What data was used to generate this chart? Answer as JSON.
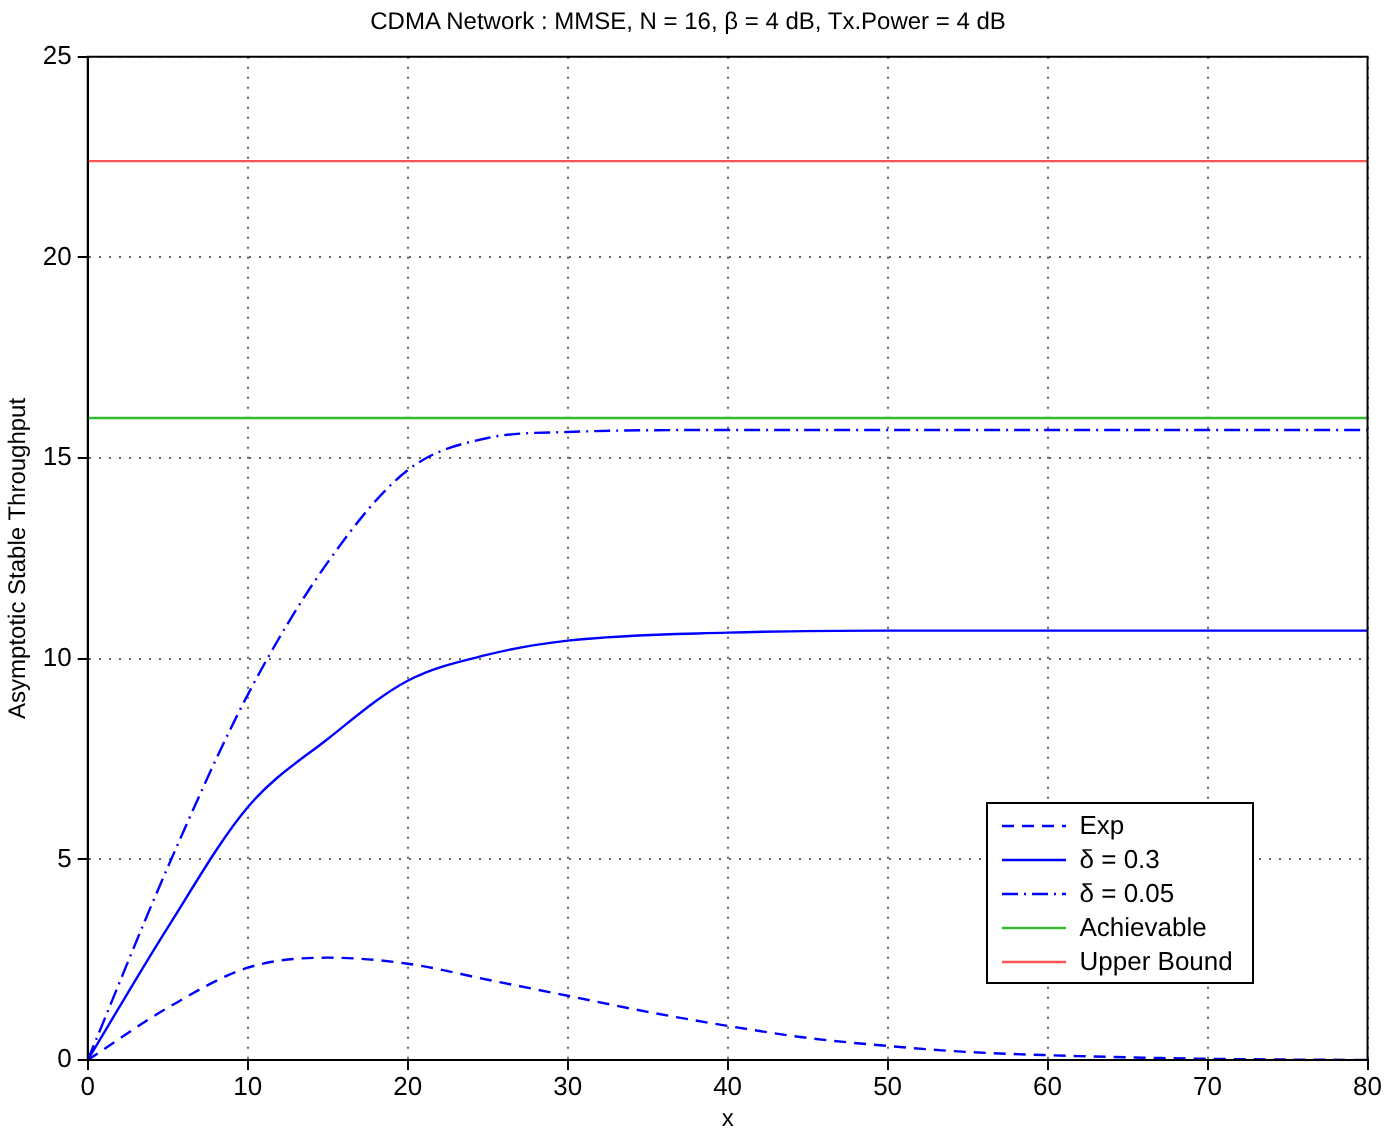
{
  "chart_data": {
    "type": "line",
    "title": "CDMA Network : MMSE, N = 16, β = 4 dB, Tx.Power = 4 dB",
    "xlabel": "x",
    "ylabel": "Asymptotic Stable Throughput",
    "xlim": [
      0,
      80
    ],
    "xticks": [
      0,
      10,
      20,
      30,
      40,
      50,
      60,
      70,
      80
    ],
    "ylim": [
      0,
      25
    ],
    "yticks": [
      0,
      5,
      10,
      15,
      20,
      25
    ],
    "grid": true,
    "legend": "bottom right",
    "marker": "none",
    "series": [
      {
        "name": "Exp",
        "color": "#0000ff",
        "line_style": "dashed",
        "x": [
          0,
          5,
          10,
          15,
          20,
          25,
          30,
          35,
          40,
          45,
          50,
          55,
          60,
          70,
          80
        ],
        "values": [
          0,
          1.3,
          2.3,
          2.55,
          2.4,
          2.0,
          1.6,
          1.2,
          0.85,
          0.55,
          0.35,
          0.2,
          0.12,
          0.03,
          0
        ]
      },
      {
        "name": "δ = 0.3",
        "color": "#0000ff",
        "line_style": "solid",
        "x": [
          0,
          5,
          10,
          15,
          20,
          25,
          30,
          40,
          50,
          60,
          70,
          80
        ],
        "values": [
          0,
          3.3,
          6.3,
          8.0,
          9.45,
          10.1,
          10.45,
          10.65,
          10.7,
          10.7,
          10.7,
          10.7
        ]
      },
      {
        "name": "δ = 0.05",
        "color": "#0000ff",
        "line_style": "dashdot",
        "x": [
          0,
          5,
          10,
          15,
          20,
          25,
          30,
          40,
          50,
          60,
          70,
          80
        ],
        "values": [
          0,
          4.8,
          9.1,
          12.4,
          14.7,
          15.5,
          15.65,
          15.7,
          15.7,
          15.7,
          15.7,
          15.7
        ]
      },
      {
        "name": "Achievable",
        "color": "#33bb33",
        "line_style": "solid",
        "x": [
          0,
          80
        ],
        "values": [
          16,
          16
        ]
      },
      {
        "name": "Upper Bound",
        "color": "#ff5555",
        "line_style": "solid",
        "x": [
          0,
          80
        ],
        "values": [
          22.4,
          22.4
        ]
      }
    ]
  }
}
